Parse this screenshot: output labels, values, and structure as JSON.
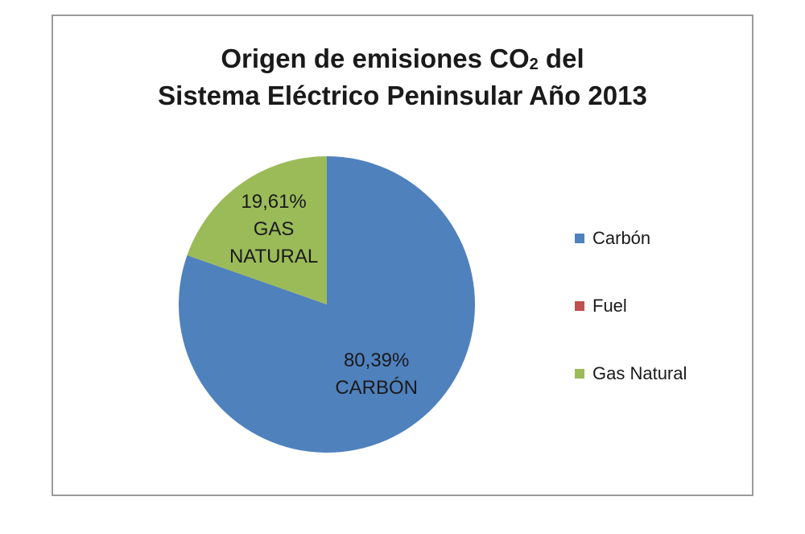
{
  "chart_data": {
    "type": "pie",
    "title_line1_pre": "Origen de emisiones CO",
    "title_line1_sub": "2",
    "title_line1_post": " del",
    "title_line2": "Sistema Eléctrico Peninsular Año 2013",
    "slices": [
      {
        "name": "Carbón",
        "value": 80.39,
        "color": "#4f81bd",
        "pct_label": "80,39%",
        "name_label": "CARBÓN"
      },
      {
        "name": "Fuel",
        "value": 0,
        "color": "#c0504d",
        "pct_label": "",
        "name_label": ""
      },
      {
        "name": "Gas Natural",
        "value": 19.61,
        "color": "#9bbb59",
        "pct_label": "19,61%",
        "name_label": "GAS NATURAL"
      }
    ],
    "legend_position": "right",
    "legend": [
      "Carbón",
      "Fuel",
      "Gas Natural"
    ]
  }
}
